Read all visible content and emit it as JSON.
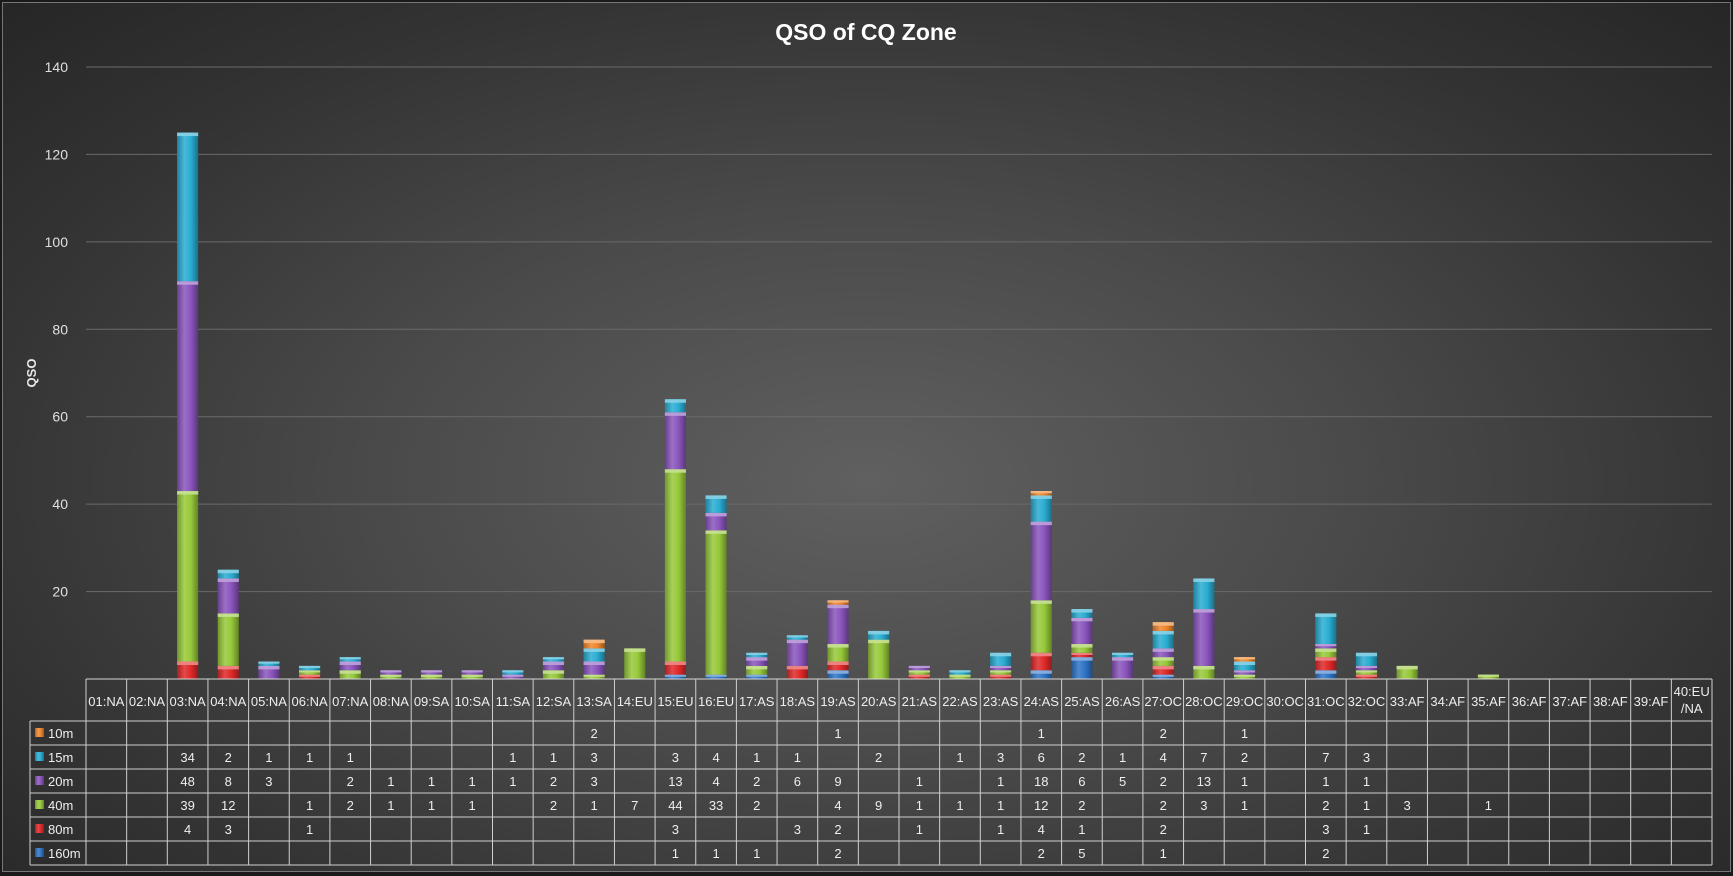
{
  "chart_data": {
    "type": "bar",
    "stacked": true,
    "title": "QSO of CQ Zone",
    "xlabel": "",
    "ylabel": "QSO",
    "ylim": [
      0,
      140
    ],
    "yticks": [
      20,
      40,
      60,
      80,
      100,
      120,
      140
    ],
    "grid": true,
    "legend": "data-table",
    "categories": [
      "01:NA",
      "02:NA",
      "03:NA",
      "04:NA",
      "05:NA",
      "06:NA",
      "07:NA",
      "08:NA",
      "09:SA",
      "10:SA",
      "11:SA",
      "12:SA",
      "13:SA",
      "14:EU",
      "15:EU",
      "16:EU",
      "17:AS",
      "18:AS",
      "19:AS",
      "20:AS",
      "21:AS",
      "22:AS",
      "23:AS",
      "24:AS",
      "25:AS",
      "26:AS",
      "27:OC",
      "28:OC",
      "29:OC",
      "30:OC",
      "31:OC",
      "32:OC",
      "33:AF",
      "34:AF",
      "35:AF",
      "36:AF",
      "37:AF",
      "38:AF",
      "39:AF",
      "40:EU /NA"
    ],
    "series": [
      {
        "name": "160m",
        "color": "#2f74c6",
        "values": [
          null,
          null,
          null,
          null,
          null,
          null,
          null,
          null,
          null,
          null,
          null,
          null,
          null,
          null,
          1,
          1,
          1,
          null,
          2,
          null,
          null,
          null,
          null,
          2,
          5,
          null,
          1,
          null,
          null,
          null,
          2,
          null,
          null,
          null,
          null,
          null,
          null,
          null,
          null,
          null
        ]
      },
      {
        "name": "80m",
        "color": "#e02929",
        "values": [
          null,
          null,
          4,
          3,
          null,
          1,
          null,
          null,
          null,
          null,
          null,
          null,
          null,
          null,
          3,
          null,
          null,
          3,
          2,
          null,
          1,
          null,
          1,
          4,
          1,
          null,
          2,
          null,
          null,
          null,
          3,
          1,
          null,
          null,
          null,
          null,
          null,
          null,
          null,
          null
        ]
      },
      {
        "name": "40m",
        "color": "#97c93a",
        "values": [
          null,
          null,
          39,
          12,
          null,
          1,
          2,
          1,
          1,
          1,
          null,
          2,
          1,
          7,
          44,
          33,
          2,
          null,
          4,
          9,
          1,
          1,
          1,
          12,
          2,
          null,
          2,
          3,
          1,
          null,
          2,
          1,
          3,
          null,
          1,
          null,
          null,
          null,
          null,
          null
        ]
      },
      {
        "name": "20m",
        "color": "#8a55bd",
        "values": [
          null,
          null,
          48,
          8,
          3,
          null,
          2,
          1,
          1,
          1,
          1,
          2,
          3,
          null,
          13,
          4,
          2,
          6,
          9,
          null,
          1,
          null,
          1,
          18,
          6,
          5,
          2,
          13,
          1,
          null,
          1,
          1,
          null,
          null,
          null,
          null,
          null,
          null,
          null,
          null
        ]
      },
      {
        "name": "15m",
        "color": "#2aadd2",
        "values": [
          null,
          null,
          34,
          2,
          1,
          1,
          1,
          null,
          null,
          null,
          1,
          1,
          3,
          null,
          3,
          4,
          1,
          1,
          null,
          2,
          null,
          1,
          3,
          6,
          2,
          1,
          4,
          7,
          2,
          null,
          7,
          3,
          null,
          null,
          null,
          null,
          null,
          null,
          null,
          null
        ]
      },
      {
        "name": "10m",
        "color": "#f0862b",
        "values": [
          null,
          null,
          null,
          null,
          null,
          null,
          null,
          null,
          null,
          null,
          null,
          null,
          2,
          null,
          null,
          null,
          null,
          null,
          1,
          null,
          null,
          null,
          null,
          1,
          null,
          null,
          2,
          null,
          1,
          null,
          null,
          null,
          null,
          null,
          null,
          null,
          null,
          null,
          null,
          null
        ]
      }
    ],
    "table_row_order": [
      "10m",
      "15m",
      "20m",
      "40m",
      "80m",
      "160m"
    ]
  }
}
